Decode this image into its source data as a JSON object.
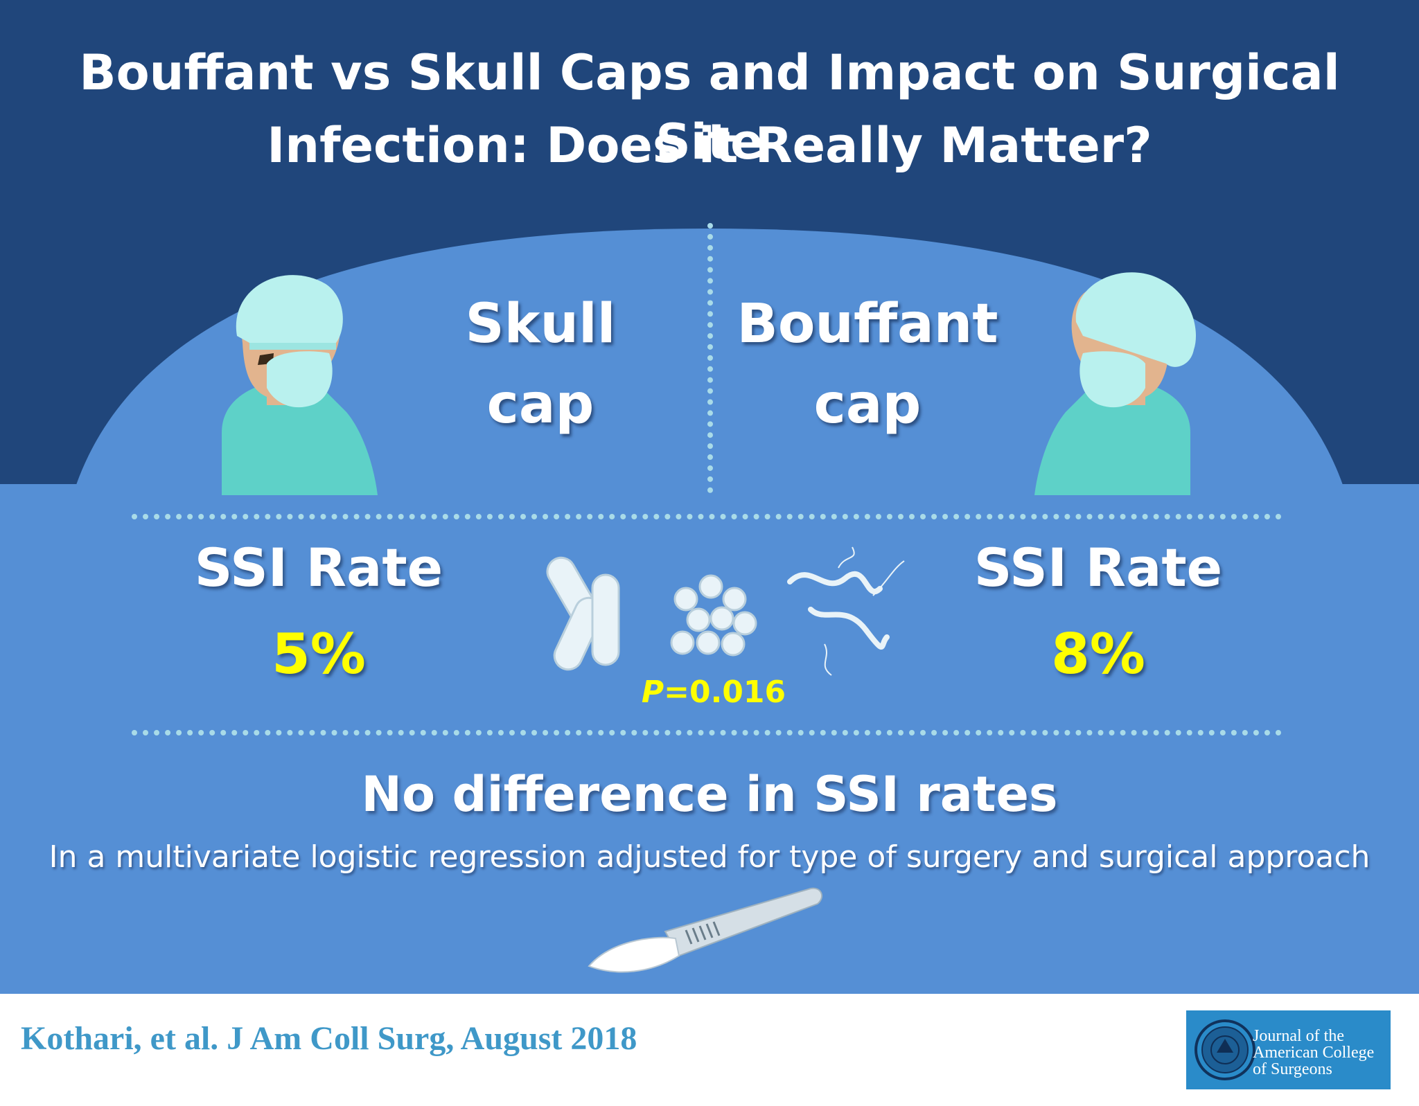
{
  "title": {
    "line1": "Bouffant vs Skull Caps and Impact on Surgical Site",
    "line2": "Infection: Does it Really Matter?"
  },
  "comparison": {
    "left": {
      "cap_label_line1": "Skull",
      "cap_label_line2": "cap",
      "ssi_title": "SSI Rate",
      "ssi_value": "5%"
    },
    "right": {
      "cap_label_line1": "Bouffant",
      "cap_label_line2": "cap",
      "ssi_title": "SSI Rate",
      "ssi_value": "8%"
    },
    "p_value_prefix": "P",
    "p_value_rest": "=0.016"
  },
  "conclusion": {
    "headline": "No difference in SSI rates",
    "note": "In a multivariate logistic regression adjusted for type of surgery and surgical approach"
  },
  "footer": {
    "citation": "Kothari, et al. J Am Coll Surg, August 2018",
    "journal_line1": "Journal of the",
    "journal_line2": "American College",
    "journal_line3": "of Surgeons"
  },
  "colors": {
    "dark_blue": "#20467b",
    "mid_blue": "#558fd5",
    "highlight_yellow": "#ffff00",
    "citation_blue": "#3f98c8",
    "scrub_teal": "#5ed1c8",
    "cap_teal": "#b9f1ee"
  },
  "icons": [
    "surgeon-skull-cap-icon",
    "surgeon-bouffant-cap-icon",
    "bacteria-icon",
    "scalpel-icon",
    "journal-seal-icon"
  ]
}
